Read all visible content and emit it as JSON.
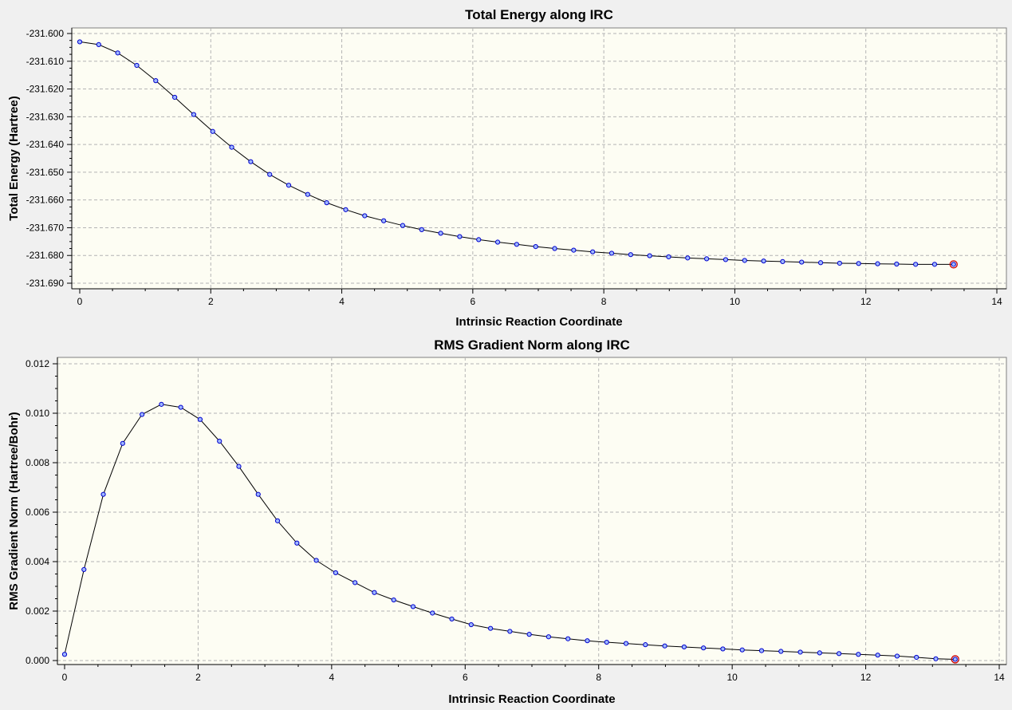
{
  "colors": {
    "background": "#f0f0f0",
    "plot_background": "#fdfdf3",
    "grid": "#b4b4b4",
    "line": "#000000",
    "marker_fill": "#9fb8ff",
    "marker_stroke": "#0000cc",
    "current_point": "#cc0000"
  },
  "chart_data": [
    {
      "type": "line",
      "title": "Total Energy along IRC",
      "xlabel": "Intrinsic Reaction Coordinate",
      "ylabel": "Total Energy (Hartree)",
      "xlim": [
        0,
        14
      ],
      "ylim": [
        -231.69,
        -231.6
      ],
      "xticks": [
        0,
        2,
        4,
        6,
        8,
        10,
        12,
        14
      ],
      "yticks": [
        -231.6,
        -231.61,
        -231.62,
        -231.63,
        -231.64,
        -231.65,
        -231.66,
        -231.67,
        -231.68,
        -231.69
      ],
      "xtick_labels": [
        "0",
        "2",
        "4",
        "6",
        "8",
        "10",
        "12",
        "14"
      ],
      "ytick_labels": [
        "-231.600",
        "-231.610",
        "-231.620",
        "-231.630",
        "-231.640",
        "-231.650",
        "-231.660",
        "-231.670",
        "-231.680",
        "-231.690"
      ],
      "grid": true,
      "x": [
        0.0,
        0.29,
        0.58,
        0.87,
        1.16,
        1.45,
        1.74,
        2.03,
        2.32,
        2.61,
        2.9,
        3.19,
        3.48,
        3.77,
        4.06,
        4.35,
        4.64,
        4.93,
        5.22,
        5.51,
        5.8,
        6.09,
        6.38,
        6.67,
        6.96,
        7.25,
        7.54,
        7.83,
        8.12,
        8.41,
        8.7,
        8.99,
        9.28,
        9.57,
        9.86,
        10.15,
        10.44,
        10.73,
        11.02,
        11.31,
        11.6,
        11.89,
        12.18,
        12.47,
        12.76,
        13.05,
        13.34
      ],
      "y": [
        -231.603,
        -231.604,
        -231.607,
        -231.6115,
        -231.617,
        -231.623,
        -231.6292,
        -231.6353,
        -231.641,
        -231.6462,
        -231.6508,
        -231.6547,
        -231.658,
        -231.661,
        -231.6635,
        -231.6657,
        -231.6675,
        -231.6692,
        -231.6707,
        -231.672,
        -231.6732,
        -231.6743,
        -231.6752,
        -231.676,
        -231.6768,
        -231.6775,
        -231.6781,
        -231.6787,
        -231.6792,
        -231.6797,
        -231.6801,
        -231.6805,
        -231.6809,
        -231.6812,
        -231.6815,
        -231.6818,
        -231.682,
        -231.6822,
        -231.6824,
        -231.6826,
        -231.6828,
        -231.6829,
        -231.683,
        -231.6831,
        -231.6832,
        -231.6832,
        -231.6832
      ],
      "highlight_index": 46
    },
    {
      "type": "line",
      "title": "RMS Gradient Norm along IRC",
      "xlabel": "Intrinsic Reaction Coordinate",
      "ylabel": "RMS Gradient Norm (Hartree/Bohr)",
      "xlim": [
        0,
        14
      ],
      "ylim": [
        0.0,
        0.012
      ],
      "xticks": [
        0,
        2,
        4,
        6,
        8,
        10,
        12,
        14
      ],
      "yticks": [
        0.0,
        0.002,
        0.004,
        0.006,
        0.008,
        0.01,
        0.012
      ],
      "xtick_labels": [
        "0",
        "2",
        "4",
        "6",
        "8",
        "10",
        "12",
        "14"
      ],
      "ytick_labels": [
        "0.000",
        "0.002",
        "0.004",
        "0.006",
        "0.008",
        "0.010",
        "0.012"
      ],
      "grid": true,
      "x": [
        0.0,
        0.29,
        0.58,
        0.87,
        1.16,
        1.45,
        1.74,
        2.03,
        2.32,
        2.61,
        2.9,
        3.19,
        3.48,
        3.77,
        4.06,
        4.35,
        4.64,
        4.93,
        5.22,
        5.51,
        5.8,
        6.09,
        6.38,
        6.67,
        6.96,
        7.25,
        7.54,
        7.83,
        8.12,
        8.41,
        8.7,
        8.99,
        9.28,
        9.57,
        9.86,
        10.15,
        10.44,
        10.73,
        11.02,
        11.31,
        11.6,
        11.89,
        12.18,
        12.47,
        12.76,
        13.05,
        13.34
      ],
      "y": [
        0.00025,
        0.00368,
        0.00672,
        0.00878,
        0.00995,
        0.01036,
        0.01024,
        0.00975,
        0.00887,
        0.00785,
        0.00672,
        0.00565,
        0.00475,
        0.00405,
        0.00355,
        0.00315,
        0.00275,
        0.00245,
        0.00218,
        0.00192,
        0.00168,
        0.00145,
        0.0013,
        0.00118,
        0.00106,
        0.00096,
        0.00088,
        0.0008,
        0.00074,
        0.00069,
        0.00064,
        0.00059,
        0.00055,
        0.00051,
        0.00047,
        0.00043,
        0.0004,
        0.00037,
        0.00034,
        0.00031,
        0.00028,
        0.00025,
        0.00022,
        0.00018,
        0.00013,
        7e-05,
        5e-05
      ],
      "highlight_index": 46
    }
  ]
}
